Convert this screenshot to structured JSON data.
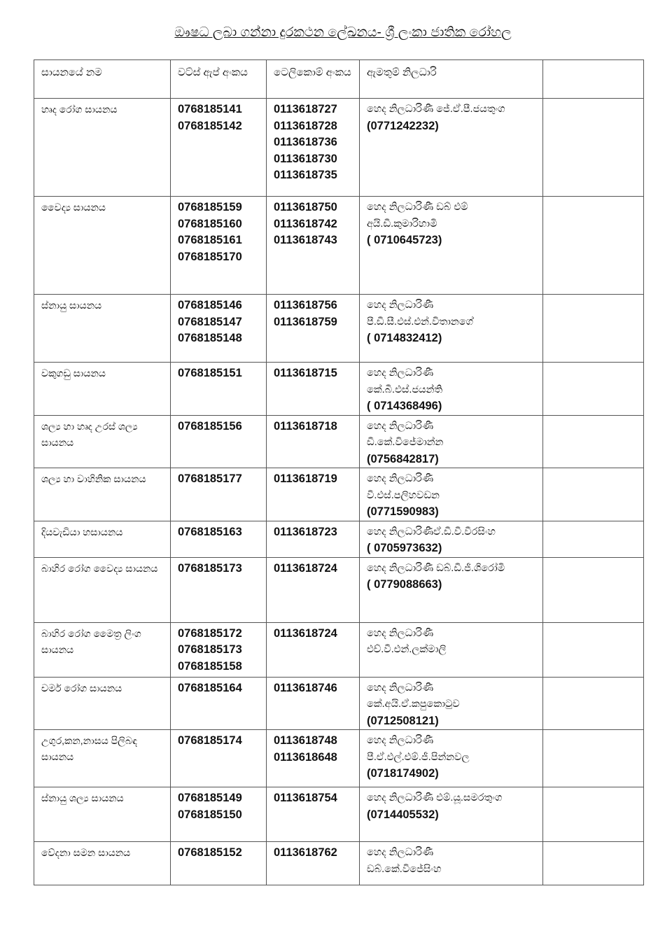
{
  "title": "ඖෂධ ලබා ගන්නා දුරකථන ලේඛනය- ශ්‍රී ලංකා ජාතික රෝහල",
  "headers": [
    "සායනයේ නම",
    "වට්ස් ඇප් අංකය",
    "ටෙලිකොම් අංකය",
    "ඇමතුම් නිලධාරි",
    ""
  ],
  "rows": [
    {
      "clinic": "හෘද රෝග සායනය",
      "whatsapp": [
        "0768185141",
        "0768185142"
      ],
      "telecom": [
        "0113618727",
        "0113618728",
        "0113618736",
        "0113618730",
        "0113618735"
      ],
      "officer": [
        "හෙද නිලධාරිණී ජේ.ඒ.පී.ජයතුංග"
      ],
      "officer_phone": "(0771242232)"
    },
    {
      "clinic": "වෛද්‍ය සායනය",
      "whatsapp": [
        "0768185159",
        "0768185160",
        "0768185161",
        "0768185170"
      ],
      "telecom": [
        "0113618750",
        "0113618742",
        "0113618743"
      ],
      "officer": [
        "හෙද නිලධාරිණී ඩබ් එම්",
        "අයි.ඩී.කුමාරිහාමි"
      ],
      "officer_phone": "( 0710645723)"
    },
    {
      "clinic": "ස්නායු සායනය",
      "whatsapp": [
        "0768185146",
        "0768185147",
        "0768185148"
      ],
      "telecom": [
        "0113618756",
        "0113618759"
      ],
      "officer": [
        "හෙද නිලධාරිණී",
        "පී.ඩී.සී.එස්.එන්.විතානගේ"
      ],
      "officer_phone": "( 0714832412)"
    },
    {
      "clinic": "වකුගඩු සායනය",
      "whatsapp": [
        "0768185151"
      ],
      "telecom": [
        "0113618715"
      ],
      "officer": [
        "හෙද නිලධාරිණී",
        "කේ.බී.එස්.ජයන්ති"
      ],
      "officer_phone": "( 0714368496)"
    },
    {
      "clinic": "ශල්‍ය හා හෘද උරස් ශල්‍ය සායනය",
      "whatsapp": [
        "0768185156"
      ],
      "telecom": [
        "0113618718"
      ],
      "officer": [
        "හෙද නිලධාරිණී",
        "ඩී.කේ.විජේමාන්න"
      ],
      "officer_phone": "(0756842817)"
    },
    {
      "clinic": "ශල්‍ය හා වාහිනික සායනය",
      "whatsapp": [
        "0768185177"
      ],
      "telecom": [
        "0113618719"
      ],
      "officer": [
        "හෙද නිලධාරිණී",
        "වී.එස්.පලිහවඩන"
      ],
      "officer_phone": "(0771590983)"
    },
    {
      "clinic": "දියවැඩියා හසායනය",
      "whatsapp": [
        "0768185163"
      ],
      "telecom": [
        "0113618723"
      ],
      "officer": [
        "හෙද නිලධාරිණීඒ.ඩී.වී.වීරසිංහ"
      ],
      "officer_phone": "( 0705973632)"
    },
    {
      "clinic": "බාහිර රෝග වෛද්‍ය සායනය",
      "whatsapp": [
        "0768185173"
      ],
      "telecom": [
        "0113618724"
      ],
      "officer": [
        "හෙද නිලධාරිණී ඩබ්.ඩී.ජී.ශිරෝමි"
      ],
      "officer_phone": "( 0779088663)"
    },
    {
      "clinic": "බාහිර රෝග මෛත්‍ර ලිංග සායනය",
      "whatsapp": [
        "0768185172",
        "0768185173",
        "0768185158"
      ],
      "telecom": [
        "0113618724"
      ],
      "officer": [
        "හෙද නිලධාරිණී",
        "එච්.වී.එන්.ලක්මාලි"
      ],
      "officer_phone": ""
    },
    {
      "clinic": "චර්ම රෝග සායනය",
      "whatsapp": [
        "0768185164"
      ],
      "telecom": [
        "0113618746"
      ],
      "officer": [
        "හෙද නිලධාරිණී",
        "කේ.අයි.ඒ.කපුකොටුව"
      ],
      "officer_phone": "(0712508121)"
    },
    {
      "clinic": "උගුර,කන,නාසය පිලිබඳ සායනය",
      "whatsapp": [
        "0768185174"
      ],
      "telecom": [
        "0113618748",
        "0113618648"
      ],
      "officer": [
        "හෙද නිලධාරිණී",
        "පී.ඒ.එල්.එම්.ජී.පින්නවල"
      ],
      "officer_phone": "(0718174902)"
    },
    {
      "clinic": "ස්නායු ශල්‍ය සායනය",
      "whatsapp": [
        "0768185149",
        "0768185150"
      ],
      "telecom": [
        "0113618754"
      ],
      "officer": [
        "හෙද නිලධාරිණී එම්.යූ.සමරතුංග"
      ],
      "officer_phone": "(0714405532)"
    },
    {
      "clinic": "වේදනා සමන සායනය",
      "whatsapp": [
        "0768185152"
      ],
      "telecom": [
        "0113618762"
      ],
      "officer": [
        "හෙද නිලධාරිණී",
        "ඩබ්.කේ.විජේසිංහ"
      ],
      "officer_phone": ""
    }
  ]
}
